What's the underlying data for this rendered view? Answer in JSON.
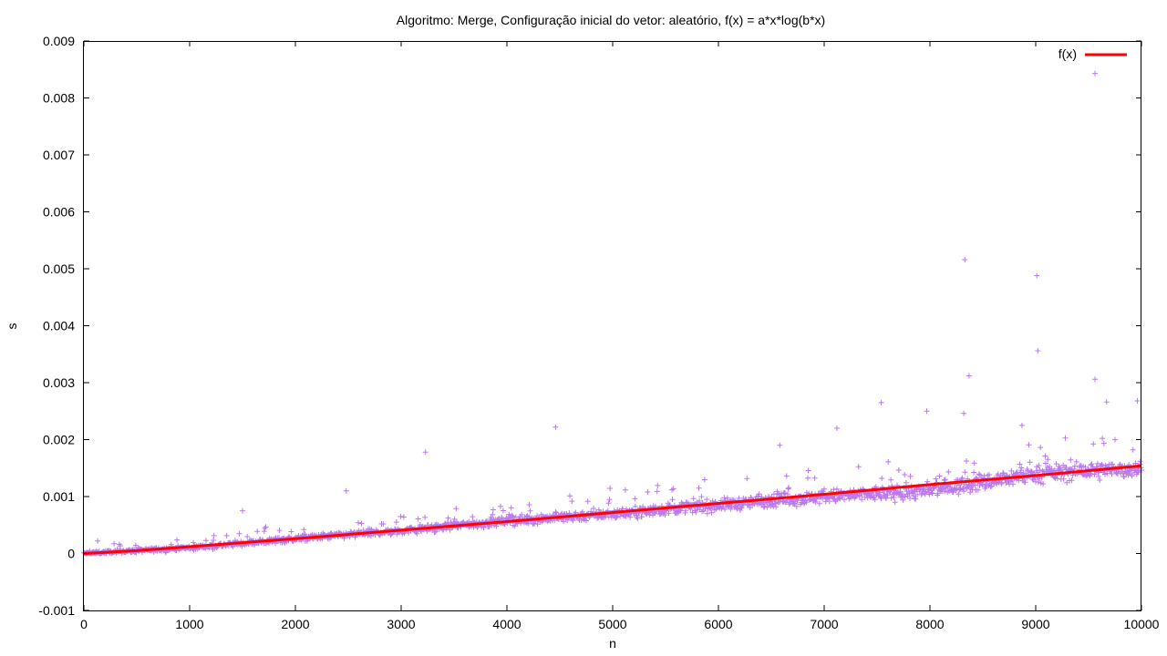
{
  "chart_data": {
    "type": "scatter",
    "title": "Algoritmo: Merge, Configuração inicial do vetor: aleatório, f(x) = a*x*log(b*x)",
    "xlabel": "n",
    "ylabel": "s",
    "xlim": [
      0,
      10000
    ],
    "ylim": [
      -0.001,
      0.009
    ],
    "x_ticks": [
      "0",
      "1000",
      "2000",
      "3000",
      "4000",
      "5000",
      "6000",
      "7000",
      "8000",
      "9000",
      "10000"
    ],
    "y_ticks": [
      "-0.001",
      "0",
      "0.001",
      "0.002",
      "0.003",
      "0.004",
      "0.005",
      "0.006",
      "0.007",
      "0.008",
      "0.009"
    ],
    "grid": false,
    "legend_position": "top-right",
    "colors": {
      "points": "#bb77ee",
      "fit": "#ff0000"
    },
    "series": [
      {
        "type": "scatter",
        "marker": "plus",
        "description_of_distribution": "dense cloud of measurements for every n in 0..10000, roughly following the fit with spread increasing with n",
        "trend_x": [
          0,
          1000,
          2000,
          3000,
          4000,
          5000,
          6000,
          7000,
          8000,
          9000,
          10000
        ],
        "trend_y": [
          0.0,
          0.0001,
          0.00026,
          0.0004,
          0.00057,
          0.0007,
          0.00085,
          0.001,
          0.0011,
          0.0014,
          0.0015
        ],
        "outliers": [
          {
            "x": 130,
            "y": 0.00022
          },
          {
            "x": 1500,
            "y": 0.00075
          },
          {
            "x": 2480,
            "y": 0.0011
          },
          {
            "x": 3230,
            "y": 0.00178
          },
          {
            "x": 4460,
            "y": 0.00222
          },
          {
            "x": 6580,
            "y": 0.0019
          },
          {
            "x": 7120,
            "y": 0.0022
          },
          {
            "x": 7540,
            "y": 0.00265
          },
          {
            "x": 7970,
            "y": 0.0025
          },
          {
            "x": 8330,
            "y": 0.00516
          },
          {
            "x": 8320,
            "y": 0.00246
          },
          {
            "x": 8370,
            "y": 0.00312
          },
          {
            "x": 8870,
            "y": 0.00225
          },
          {
            "x": 9010,
            "y": 0.00488
          },
          {
            "x": 9020,
            "y": 0.00356
          },
          {
            "x": 9560,
            "y": 0.00306
          },
          {
            "x": 9560,
            "y": 0.00843
          },
          {
            "x": 9670,
            "y": 0.00266
          },
          {
            "x": 9960,
            "y": 0.00268
          }
        ]
      },
      {
        "name": "f(x)",
        "type": "line",
        "x": [
          0,
          500,
          1000,
          2000,
          3000,
          4000,
          5000,
          6000,
          7000,
          8000,
          9000,
          10000
        ],
        "y": [
          0.0,
          5e-05,
          0.00012,
          0.00026,
          0.00041,
          0.00056,
          0.00072,
          0.00088,
          0.00104,
          0.00121,
          0.00137,
          0.00154
        ]
      }
    ]
  }
}
